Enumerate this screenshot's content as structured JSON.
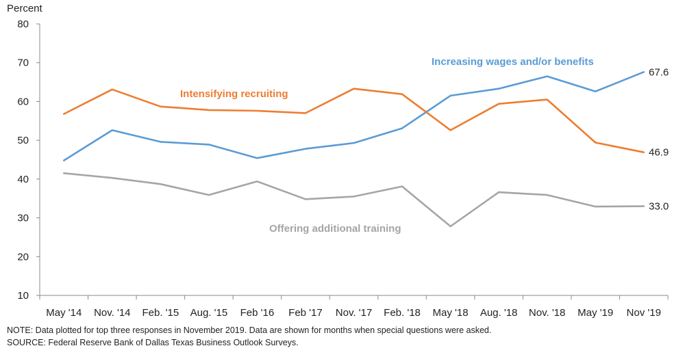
{
  "chart_data": {
    "type": "line",
    "ylabel": "Percent",
    "ylim": [
      10,
      80
    ],
    "yticks": [
      10,
      20,
      30,
      40,
      50,
      60,
      70,
      80
    ],
    "grid": false,
    "categories": [
      "May '14",
      "Nov. '14",
      "Feb. '15",
      "Aug. '15",
      "Feb '16",
      "Feb '17",
      "Nov. '17",
      "Feb. '18",
      "May '18",
      "Aug. '18",
      "Nov. '18",
      "May '19",
      "Nov '19"
    ],
    "series": [
      {
        "name": "Increasing wages and/or benefits",
        "color": "#5b9bd5",
        "values": [
          44.8,
          52.6,
          49.6,
          48.9,
          45.4,
          47.8,
          49.3,
          53.1,
          61.5,
          63.3,
          66.5,
          62.6,
          67.6
        ],
        "end_label": "67.6"
      },
      {
        "name": "Intensifying recruiting",
        "color": "#ed7d31",
        "values": [
          56.8,
          63.1,
          58.7,
          57.8,
          57.6,
          57.0,
          63.3,
          61.9,
          52.6,
          59.4,
          60.5,
          49.4,
          46.9
        ],
        "end_label": "46.9"
      },
      {
        "name": "Offering additional training",
        "color": "#a5a5a5",
        "values": [
          41.5,
          40.3,
          38.7,
          35.9,
          39.4,
          34.8,
          35.5,
          38.1,
          27.8,
          36.6,
          35.9,
          32.9,
          33.0
        ],
        "end_label": "33.0"
      }
    ]
  },
  "notes": {
    "note": "NOTE: Data plotted for top three responses in November 2019. Data are shown for months when special questions were asked.",
    "source": "SOURCE: Federal Reserve Bank of Dallas Texas Business Outlook Surveys."
  }
}
